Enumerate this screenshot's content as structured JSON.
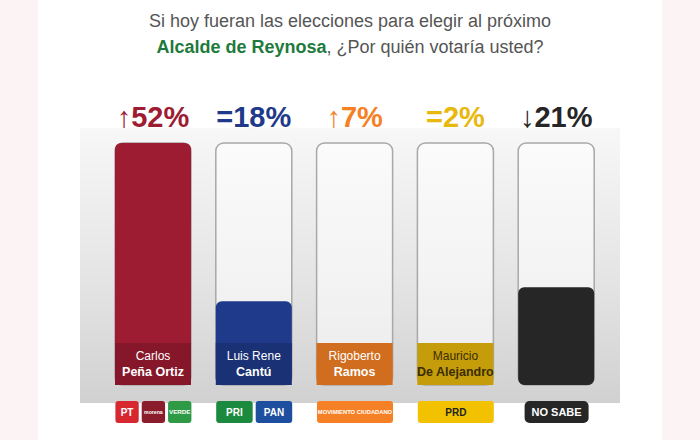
{
  "chart_data": {
    "type": "bar",
    "title": [
      "Si hoy fueran las elecciones para elegir al próximo",
      "Alcalde de Reynosa",
      ", ¿Por quién votaría usted?"
    ],
    "categories": [
      "Carlos\nPeña Ortiz",
      "Luis Rene\nCantú",
      "Rigoberto\nRamos",
      "Mauricio\nDe Alejandro",
      "NO SABE"
    ],
    "values": [
      52,
      18,
      7,
      2,
      21
    ],
    "value_labels": [
      "↑52%",
      "=18%",
      "↑7%",
      "=2%",
      "↓21%"
    ],
    "colors": [
      "#9e1c32",
      "#1f3a8a",
      "#f58025",
      "#e8b80c",
      "#262626"
    ],
    "parties": [
      [
        {
          "name": "PT",
          "color": "#d7282f"
        },
        {
          "name": "morena",
          "color": "#8a1c2b"
        },
        {
          "name": "VERDE",
          "color": "#2e9a46"
        }
      ],
      [
        {
          "name": "PRI",
          "color": "#1b8a3e"
        },
        {
          "name": "PAN",
          "color": "#1d4f9e"
        }
      ],
      [
        {
          "name": "MOVIMIENTO CIUDADANO",
          "color": "#f58025"
        }
      ],
      [
        {
          "name": "PRD",
          "color": "#f2c200"
        }
      ],
      []
    ],
    "ylim": [
      0,
      52
    ],
    "tick_labels": "x",
    "data_labels": true,
    "grid": false
  }
}
